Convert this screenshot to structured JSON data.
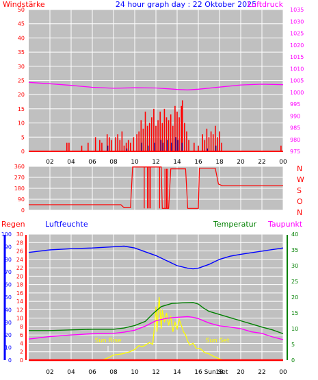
{
  "colors": {
    "background": "#ffffff",
    "panel": "#c0c0c0",
    "wind": "#ff0000",
    "wind_gust": "#0000a0",
    "pressure": "#ff00ff",
    "direction": "#ff0000",
    "humidity": "#0000ff",
    "rain": "#ff0000",
    "temperature": "#008000",
    "dewpoint": "#ff00ff",
    "sun": "#ffff00",
    "grid": "#ffffff"
  },
  "header": {
    "title": "24 hour graph day : 22 Oktober 2025"
  },
  "chart_data": [
    {
      "type": "bar",
      "name": "wind-pressure",
      "labels": {
        "left": "Windstärke",
        "right": "Luftdruck"
      },
      "x_ticks": [
        "02",
        "04",
        "06",
        "08",
        "10",
        "12",
        "14",
        "16",
        "18",
        "20",
        "22",
        "00"
      ],
      "left_axis": {
        "range": [
          0,
          50
        ],
        "ticks": [
          "0",
          "5",
          "10",
          "15",
          "20",
          "25",
          "30",
          "35",
          "40",
          "45",
          "50"
        ]
      },
      "right_axis": {
        "range": [
          975,
          1035
        ],
        "ticks": [
          "975",
          "980",
          "985",
          "990",
          "995",
          "1000",
          "1005",
          "1010",
          "1015",
          "1020",
          "1025",
          "1030",
          "1035"
        ]
      },
      "wind_bars": [
        [
          3.6,
          3
        ],
        [
          3.8,
          3
        ],
        [
          5.0,
          2
        ],
        [
          5.6,
          3
        ],
        [
          6.3,
          5
        ],
        [
          6.7,
          4
        ],
        [
          6.9,
          3
        ],
        [
          7.4,
          6
        ],
        [
          7.6,
          5
        ],
        [
          7.8,
          4
        ],
        [
          8.2,
          5
        ],
        [
          8.4,
          6
        ],
        [
          8.6,
          4
        ],
        [
          8.8,
          7
        ],
        [
          9.0,
          2
        ],
        [
          9.2,
          3
        ],
        [
          9.4,
          4
        ],
        [
          9.6,
          3
        ],
        [
          9.9,
          5
        ],
        [
          10.2,
          6
        ],
        [
          10.4,
          7
        ],
        [
          10.6,
          11
        ],
        [
          10.8,
          8
        ],
        [
          11.0,
          14
        ],
        [
          11.2,
          9
        ],
        [
          11.4,
          10
        ],
        [
          11.6,
          12
        ],
        [
          11.8,
          15
        ],
        [
          12.0,
          9
        ],
        [
          12.2,
          11
        ],
        [
          12.4,
          14
        ],
        [
          12.6,
          10
        ],
        [
          12.8,
          15
        ],
        [
          13.0,
          12
        ],
        [
          13.2,
          11
        ],
        [
          13.4,
          13
        ],
        [
          13.6,
          9
        ],
        [
          13.8,
          16
        ],
        [
          14.0,
          14
        ],
        [
          14.2,
          12
        ],
        [
          14.4,
          16
        ],
        [
          14.5,
          18
        ],
        [
          14.7,
          10
        ],
        [
          14.9,
          7
        ],
        [
          15.1,
          4
        ],
        [
          15.6,
          3
        ],
        [
          16.0,
          2
        ],
        [
          16.4,
          6
        ],
        [
          16.6,
          4
        ],
        [
          16.8,
          8
        ],
        [
          17.0,
          5
        ],
        [
          17.2,
          7
        ],
        [
          17.4,
          6
        ],
        [
          17.6,
          9
        ],
        [
          17.8,
          5
        ],
        [
          18.0,
          7
        ],
        [
          18.2,
          3
        ],
        [
          23.8,
          2
        ]
      ],
      "gust_bars": [
        [
          7.4,
          2
        ],
        [
          9.2,
          1
        ],
        [
          10.6,
          3
        ],
        [
          11.2,
          2
        ],
        [
          11.8,
          3
        ],
        [
          12.4,
          4
        ],
        [
          12.6,
          3
        ],
        [
          13.0,
          4
        ],
        [
          13.4,
          3
        ],
        [
          13.8,
          5
        ],
        [
          14.0,
          4
        ],
        [
          14.4,
          3
        ],
        [
          16.8,
          1
        ],
        [
          17.6,
          2
        ]
      ],
      "pressure": [
        [
          0,
          1004.2
        ],
        [
          2,
          1003.6
        ],
        [
          4,
          1002.9
        ],
        [
          6,
          1002.1
        ],
        [
          8,
          1001.7
        ],
        [
          10,
          1001.9
        ],
        [
          12,
          1001.8
        ],
        [
          14,
          1001.2
        ],
        [
          15,
          1001.0
        ],
        [
          16,
          1001.3
        ],
        [
          18,
          1002.2
        ],
        [
          20,
          1003.1
        ],
        [
          22,
          1003.4
        ],
        [
          24,
          1003.2
        ]
      ]
    },
    {
      "type": "line",
      "name": "wind-direction",
      "left_axis": {
        "range": [
          0,
          360
        ],
        "ticks": [
          "0",
          "90",
          "180",
          "270",
          "360"
        ]
      },
      "compass_labels": [
        "N",
        "W",
        "S",
        "O",
        "N"
      ],
      "direction": [
        [
          0,
          45
        ],
        [
          8.7,
          45
        ],
        [
          9.0,
          20
        ],
        [
          9.6,
          20
        ],
        [
          9.8,
          355
        ],
        [
          12.5,
          355
        ],
        [
          12.6,
          15
        ],
        [
          13.2,
          15
        ],
        [
          13.4,
          340
        ],
        [
          14.8,
          340
        ],
        [
          15.0,
          15
        ],
        [
          16.0,
          15
        ],
        [
          16.1,
          345
        ],
        [
          17.6,
          345
        ],
        [
          17.9,
          215
        ],
        [
          18.3,
          200
        ],
        [
          24,
          200
        ]
      ],
      "direction_spikes": [
        [
          10.9,
          355,
          15
        ],
        [
          11.2,
          355,
          15
        ],
        [
          11.35,
          355,
          15
        ],
        [
          11.5,
          355,
          15
        ],
        [
          12.35,
          355,
          15
        ],
        [
          12.85,
          15,
          340
        ],
        [
          13.0,
          15,
          340
        ],
        [
          13.1,
          15,
          340
        ]
      ]
    },
    {
      "type": "line",
      "name": "rain-humidity-temperature",
      "labels": {
        "rain": "Regen",
        "humidity": "Luftfeuchte",
        "temperature": "Temperatur",
        "dewpoint": "Taupunkt"
      },
      "x_ticks": [
        "02",
        "04",
        "06",
        "08",
        "10",
        "12",
        "14",
        "16",
        "18",
        "20",
        "22",
        "00"
      ],
      "humidity_axis": {
        "range": [
          0,
          100
        ],
        "ticks": [
          "0",
          "10",
          "20",
          "30",
          "40",
          "50",
          "60",
          "70",
          "80",
          "90",
          "100"
        ]
      },
      "rain_axis": {
        "range": [
          0,
          30
        ],
        "ticks": [
          "0",
          "2",
          "4",
          "6",
          "8",
          "10",
          "12",
          "14",
          "16",
          "18",
          "20",
          "22",
          "24",
          "26",
          "28",
          "30"
        ]
      },
      "temperature_axis": {
        "range": [
          0,
          40
        ],
        "ticks": [
          "0",
          "5",
          "10",
          "15",
          "20",
          "25",
          "30",
          "35",
          "40"
        ]
      },
      "sun_rise": "Sun Rise",
      "sun_set": "Sun Set",
      "humidity": [
        [
          0,
          85.5
        ],
        [
          1,
          86.5
        ],
        [
          2,
          87.5
        ],
        [
          4,
          88.5
        ],
        [
          6,
          89
        ],
        [
          8,
          90
        ],
        [
          9,
          90.5
        ],
        [
          10,
          89
        ],
        [
          11,
          86
        ],
        [
          12,
          83
        ],
        [
          13,
          79
        ],
        [
          14,
          75
        ],
        [
          15,
          73
        ],
        [
          15.5,
          72.5
        ],
        [
          16,
          73
        ],
        [
          17,
          76
        ],
        [
          18,
          80
        ],
        [
          19,
          82.5
        ],
        [
          20,
          84
        ],
        [
          22,
          86.5
        ],
        [
          24,
          89
        ]
      ],
      "temperature": [
        [
          0,
          9.4
        ],
        [
          2,
          9.4
        ],
        [
          4,
          9.6
        ],
        [
          6,
          9.8
        ],
        [
          8,
          9.8
        ],
        [
          9,
          10.2
        ],
        [
          10,
          11
        ],
        [
          11,
          12.3
        ],
        [
          11.8,
          15
        ],
        [
          12.5,
          17
        ],
        [
          13.5,
          18
        ],
        [
          14.5,
          18.2
        ],
        [
          15.5,
          18.3
        ],
        [
          16,
          17.8
        ],
        [
          16.5,
          16.5
        ],
        [
          17,
          15.5
        ],
        [
          18,
          14.5
        ],
        [
          19,
          13.5
        ],
        [
          20,
          12.5
        ],
        [
          21,
          11.5
        ],
        [
          22,
          10.5
        ],
        [
          23,
          9.6
        ],
        [
          24,
          8.4
        ]
      ],
      "dewpoint": [
        [
          0,
          6.7
        ],
        [
          2,
          7.5
        ],
        [
          4,
          8
        ],
        [
          6,
          8.4
        ],
        [
          8,
          8.5
        ],
        [
          9,
          8.9
        ],
        [
          10,
          9.5
        ],
        [
          11,
          10.8
        ],
        [
          12,
          12.5
        ],
        [
          13,
          13.3
        ],
        [
          14,
          13.6
        ],
        [
          15,
          13.8
        ],
        [
          15.5,
          13.6
        ],
        [
          16,
          13.2
        ],
        [
          17,
          11.8
        ],
        [
          18,
          10.9
        ],
        [
          19,
          10.5
        ],
        [
          20,
          10
        ],
        [
          21,
          9
        ],
        [
          22,
          8.5
        ],
        [
          23,
          7.4
        ],
        [
          24,
          6.5
        ]
      ],
      "rain": [
        [
          0,
          0
        ],
        [
          24,
          0
        ]
      ],
      "sun": [
        [
          6.9,
          0
        ],
        [
          7.4,
          0.6
        ],
        [
          8.0,
          1.6
        ],
        [
          8.8,
          2
        ],
        [
          9.5,
          2.6
        ],
        [
          10,
          3.4
        ],
        [
          10.4,
          4.6
        ],
        [
          10.7,
          4.2
        ],
        [
          11.0,
          4.8
        ],
        [
          11.4,
          5.6
        ],
        [
          11.7,
          5.0
        ],
        [
          11.9,
          12
        ],
        [
          12.0,
          17
        ],
        [
          12.1,
          9
        ],
        [
          12.3,
          20
        ],
        [
          12.5,
          10
        ],
        [
          12.6,
          16
        ],
        [
          12.8,
          12
        ],
        [
          13.0,
          15
        ],
        [
          13.2,
          11
        ],
        [
          13.4,
          14
        ],
        [
          13.6,
          9
        ],
        [
          13.8,
          12
        ],
        [
          14.0,
          10
        ],
        [
          14.2,
          13
        ],
        [
          14.4,
          11
        ],
        [
          14.6,
          9
        ],
        [
          14.8,
          8
        ],
        [
          15.0,
          6
        ],
        [
          15.2,
          4.8
        ],
        [
          15.5,
          5.4
        ],
        [
          15.8,
          3.8
        ],
        [
          16.2,
          3.6
        ],
        [
          16.6,
          2.4
        ],
        [
          17.0,
          2
        ],
        [
          17.5,
          1.1
        ],
        [
          18.0,
          0.4
        ],
        [
          18.4,
          0
        ]
      ]
    }
  ]
}
